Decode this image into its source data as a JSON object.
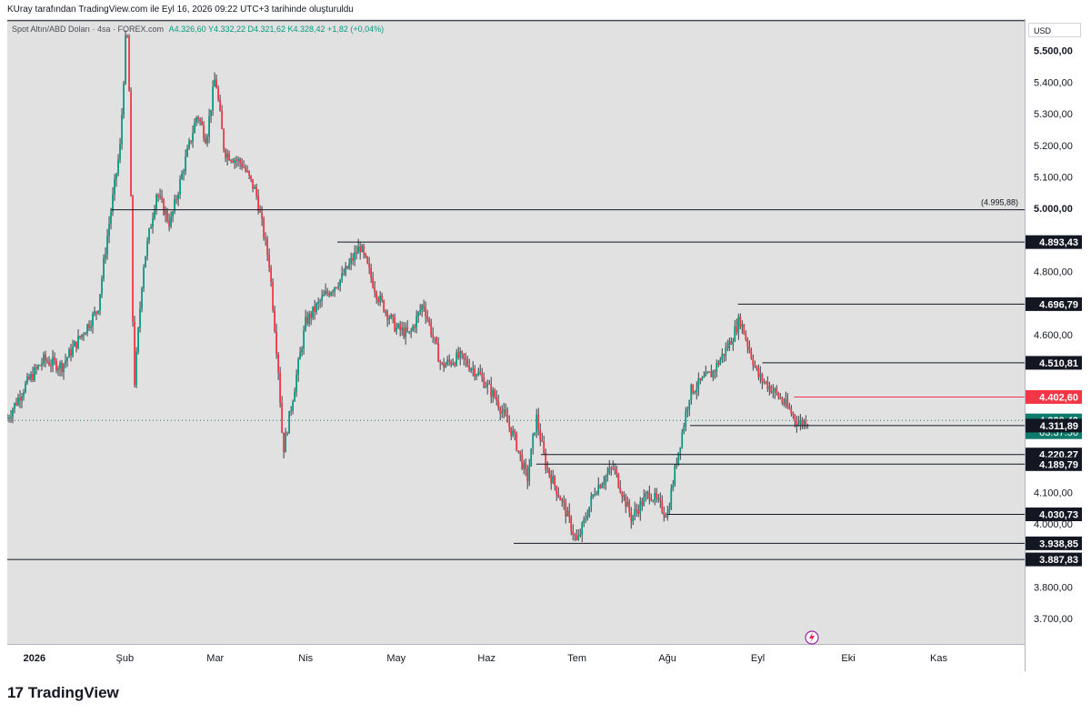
{
  "header": {
    "note": "KUray tarafından TradingView.com ile Eyl 16, 2026 09:22 UTC+3 tarihinde oluşturuldu"
  },
  "legend": {
    "symbol": "Spot Altın/ABD Doları · 4sa · FOREX.com",
    "values": "A4.326,60  Y4.332,22  D4.321,62  K4.328,42  +1,82 (+0,04%)"
  },
  "axis": {
    "currency": "USD"
  },
  "brand": {
    "logo": "17",
    "name": "TradingView"
  },
  "colors": {
    "plot_bg": "#e1e1e1",
    "up": "#089981",
    "down": "#f23645",
    "line": "#131722",
    "current": "#0f7b6c",
    "resistance_red": "#f23645"
  },
  "chart_data": {
    "type": "candlestick",
    "ylim": [
      3620,
      5600
    ],
    "xlabel": "",
    "ylabel": "",
    "y_ticks": [
      {
        "value": 5500,
        "label": "5.500,00",
        "bold": true
      },
      {
        "value": 5400,
        "label": "5.400,00"
      },
      {
        "value": 5300,
        "label": "5.300,00"
      },
      {
        "value": 5200,
        "label": "5.200,00"
      },
      {
        "value": 5100,
        "label": "5.100,00"
      },
      {
        "value": 5000,
        "label": "5.000,00",
        "bold": true
      },
      {
        "value": 4800,
        "label": "4.800,00"
      },
      {
        "value": 4600,
        "label": "4.600,00"
      },
      {
        "value": 4100,
        "label": "4.100,00"
      },
      {
        "value": 4000,
        "label": "4.000,00"
      },
      {
        "value": 3800,
        "label": "3.800,00"
      },
      {
        "value": 3700,
        "label": "3.700,00"
      }
    ],
    "x_ticks": [
      {
        "label": "2026",
        "bold": true,
        "x": 0.0
      },
      {
        "label": "Şub",
        "x": 1.0
      },
      {
        "label": "Mar",
        "x": 2.0
      },
      {
        "label": "Nis",
        "x": 3.0
      },
      {
        "label": "May",
        "x": 4.0
      },
      {
        "label": "Haz",
        "x": 5.0
      },
      {
        "label": "Tem",
        "x": 6.0
      },
      {
        "label": "Ağu",
        "x": 7.0
      },
      {
        "label": "Eyl",
        "x": 8.0
      },
      {
        "label": "Eki",
        "x": 9.0
      },
      {
        "label": "Kas",
        "x": 10.0
      }
    ],
    "x_range": [
      -0.3,
      10.95
    ],
    "price_path": [
      [
        -0.3,
        4335
      ],
      [
        -0.1,
        4440
      ],
      [
        0.1,
        4520
      ],
      [
        0.3,
        4500
      ],
      [
        0.5,
        4590
      ],
      [
        0.7,
        4680
      ],
      [
        0.8,
        4900
      ],
      [
        0.95,
        5200
      ],
      [
        1.02,
        5600
      ],
      [
        1.05,
        5350
      ],
      [
        1.1,
        4420
      ],
      [
        1.2,
        4810
      ],
      [
        1.35,
        5050
      ],
      [
        1.5,
        4950
      ],
      [
        1.65,
        5130
      ],
      [
        1.8,
        5300
      ],
      [
        1.9,
        5220
      ],
      [
        2.0,
        5420
      ],
      [
        2.1,
        5180
      ],
      [
        2.3,
        5140
      ],
      [
        2.45,
        5050
      ],
      [
        2.6,
        4820
      ],
      [
        2.7,
        4480
      ],
      [
        2.75,
        4230
      ],
      [
        2.85,
        4390
      ],
      [
        3.0,
        4640
      ],
      [
        3.2,
        4720
      ],
      [
        3.4,
        4780
      ],
      [
        3.6,
        4880
      ],
      [
        3.8,
        4720
      ],
      [
        4.0,
        4620
      ],
      [
        4.15,
        4600
      ],
      [
        4.3,
        4700
      ],
      [
        4.5,
        4500
      ],
      [
        4.7,
        4530
      ],
      [
        4.9,
        4480
      ],
      [
        5.1,
        4400
      ],
      [
        5.3,
        4280
      ],
      [
        5.45,
        4140
      ],
      [
        5.55,
        4340
      ],
      [
        5.65,
        4190
      ],
      [
        5.85,
        4060
      ],
      [
        6.0,
        3940
      ],
      [
        6.2,
        4110
      ],
      [
        6.4,
        4180
      ],
      [
        6.6,
        4020
      ],
      [
        6.8,
        4100
      ],
      [
        7.0,
        4030
      ],
      [
        7.1,
        4200
      ],
      [
        7.25,
        4420
      ],
      [
        7.5,
        4480
      ],
      [
        7.7,
        4580
      ],
      [
        7.8,
        4650
      ],
      [
        7.9,
        4560
      ],
      [
        8.0,
        4470
      ],
      [
        8.15,
        4430
      ],
      [
        8.3,
        4380
      ],
      [
        8.45,
        4320
      ],
      [
        8.55,
        4328
      ]
    ],
    "horizontal_levels": [
      {
        "value": 5595,
        "x_from": -0.3,
        "label": "",
        "style": "line"
      },
      {
        "value": 4995.88,
        "x_from": 0.85,
        "label": "(4.995,88)",
        "style": "inline"
      },
      {
        "value": 4893.43,
        "x_from": 3.35,
        "label": "4.893,43",
        "style": "black"
      },
      {
        "value": 4696.79,
        "x_from": 7.78,
        "label": "4.696,79",
        "style": "black"
      },
      {
        "value": 4510.81,
        "x_from": 8.05,
        "label": "4.510,81",
        "style": "black"
      },
      {
        "value": 4402.6,
        "x_from": 8.4,
        "label": "4.402,60",
        "style": "red"
      },
      {
        "value": 4328.42,
        "x_from": -0.3,
        "label": "4.328,42",
        "sublabel": "03:37:56",
        "style": "current"
      },
      {
        "value": 4311.89,
        "x_from": 7.25,
        "label": "4.311,89",
        "style": "black"
      },
      {
        "value": 4220.27,
        "x_from": 5.6,
        "label": "4.220,27",
        "style": "black"
      },
      {
        "value": 4189.79,
        "x_from": 5.55,
        "label": "4.189,79",
        "style": "black"
      },
      {
        "value": 4030.73,
        "x_from": 7.0,
        "label": "4.030,73",
        "style": "black"
      },
      {
        "value": 3938.85,
        "x_from": 5.3,
        "label": "3.938,85",
        "style": "black"
      },
      {
        "value": 3887.83,
        "x_from": -0.3,
        "label": "3.887,83",
        "style": "black"
      }
    ]
  }
}
